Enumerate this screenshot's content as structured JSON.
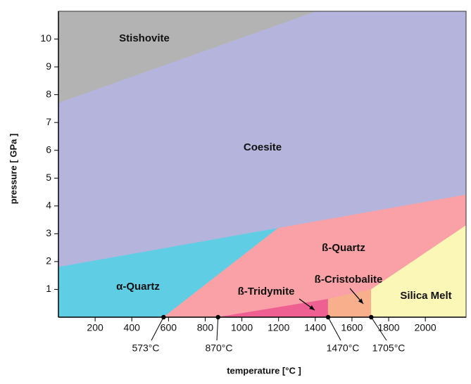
{
  "chart_data": {
    "type": "phase-diagram",
    "x_label": "temperature [°C ]",
    "y_label": "pressure [ GPa ]",
    "xlim": [
      0,
      2222
    ],
    "ylim": [
      0,
      11
    ],
    "xticks": [
      200,
      400,
      600,
      800,
      1000,
      1200,
      1400,
      1600,
      1800,
      2000
    ],
    "yticks": [
      1,
      2,
      3,
      4,
      5,
      6,
      7,
      8,
      9,
      10
    ],
    "regions": [
      {
        "name": "Stishovite",
        "color": "#b3b3b3",
        "x": [
          0,
          0,
          1408
        ],
        "y": [
          11,
          7.7,
          11
        ]
      },
      {
        "name": "Coesite",
        "color": "#b4b4dd",
        "x": [
          0,
          1408,
          2222,
          2222,
          1197,
          0
        ],
        "y": [
          7.7,
          11,
          11,
          4.4,
          3.2,
          1.8
        ]
      },
      {
        "name": "α-Quartz",
        "color": "#5fcee4",
        "x": [
          0,
          1197,
          573,
          0
        ],
        "y": [
          1.8,
          3.2,
          0,
          0
        ]
      },
      {
        "name": "ß-Quartz",
        "color": "#f9a1a6",
        "x": [
          573,
          1197,
          2222,
          2222,
          1705,
          1470,
          870
        ],
        "y": [
          0,
          3.2,
          4.4,
          3.3,
          1.0,
          0.65,
          0
        ]
      },
      {
        "name": "ß-Tridymite",
        "color": "#ee5f92",
        "x": [
          870,
          1470,
          1470
        ],
        "y": [
          0,
          0.65,
          0
        ]
      },
      {
        "name": "ß-Cristobalite",
        "color": "#f7b08b",
        "x": [
          1470,
          1470,
          1705,
          1705
        ],
        "y": [
          0,
          0.65,
          1.0,
          0
        ]
      },
      {
        "name": "Silica Melt",
        "color": "#fbf7b6",
        "x": [
          1705,
          1705,
          2222,
          2222
        ],
        "y": [
          0,
          1.0,
          3.3,
          0
        ]
      }
    ],
    "annotations": [
      {
        "label": "573°C",
        "x": 573
      },
      {
        "label": "870°C",
        "x": 870
      },
      {
        "label": "1470°C",
        "x": 1470
      },
      {
        "label": "1705°C",
        "x": 1705
      }
    ]
  }
}
